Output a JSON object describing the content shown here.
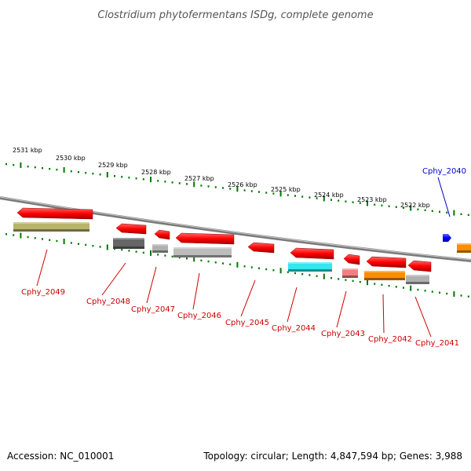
{
  "title": "Clostridium phytofermentans ISDg, complete genome",
  "footer": {
    "accession": "Accession: NC_010001",
    "topology": "Topology: circular; Length: 4,847,594 bp; Genes: 3,988"
  },
  "kbp_labels": [
    "2531 kbp",
    "2530 kbp",
    "2529 kbp",
    "2528 kbp",
    "2527 kbp",
    "2526 kbp",
    "2525 kbp",
    "2524 kbp",
    "2523 kbp",
    "2522 kbp"
  ],
  "genes": [
    {
      "label": "Cphy_2049",
      "label_color": "#cc0000",
      "strand_color": "#ff0000",
      "product_color": "#b8b46a",
      "highlighted": false
    },
    {
      "label": "Cphy_2048",
      "label_color": "#cc0000",
      "strand_color": "#ff0000",
      "product_color": "#666666",
      "highlighted": false
    },
    {
      "label": "Cphy_2047",
      "label_color": "#cc0000",
      "strand_color": "#ff0000",
      "product_color": "#b0b0b0",
      "highlighted": false
    },
    {
      "label": "Cphy_2046",
      "label_color": "#cc0000",
      "strand_color": "#ff0000",
      "product_color": "#bcbcbc",
      "highlighted": false
    },
    {
      "label": "Cphy_2045",
      "label_color": "#cc0000",
      "strand_color": "#ff0000",
      "product_color": "",
      "highlighted": false
    },
    {
      "label": "Cphy_2044",
      "label_color": "#cc0000",
      "strand_color": "#ff0000",
      "product_color": "#33e6f0",
      "highlighted": false
    },
    {
      "label": "Cphy_2043",
      "label_color": "#cc0000",
      "strand_color": "#ff0000",
      "product_color": "#f08080",
      "highlighted": false
    },
    {
      "label": "Cphy_2042",
      "label_color": "#cc0000",
      "strand_color": "#ff0000",
      "product_color": "#ff8c00",
      "highlighted": false
    },
    {
      "label": "Cphy_2041",
      "label_color": "#cc0000",
      "strand_color": "#ff0000",
      "product_color": "#b0b0b0",
      "highlighted": false
    },
    {
      "label": "Cphy_2040",
      "label_color": "#0000cc",
      "strand_color": "#0000ff",
      "product_color": "#ff8c00",
      "highlighted": true
    }
  ],
  "colors": {
    "backbone": "#8a8a8a",
    "tick_marks": "#007700",
    "forward_strand": "#ff0000",
    "reverse_strand": "#0000ff"
  }
}
